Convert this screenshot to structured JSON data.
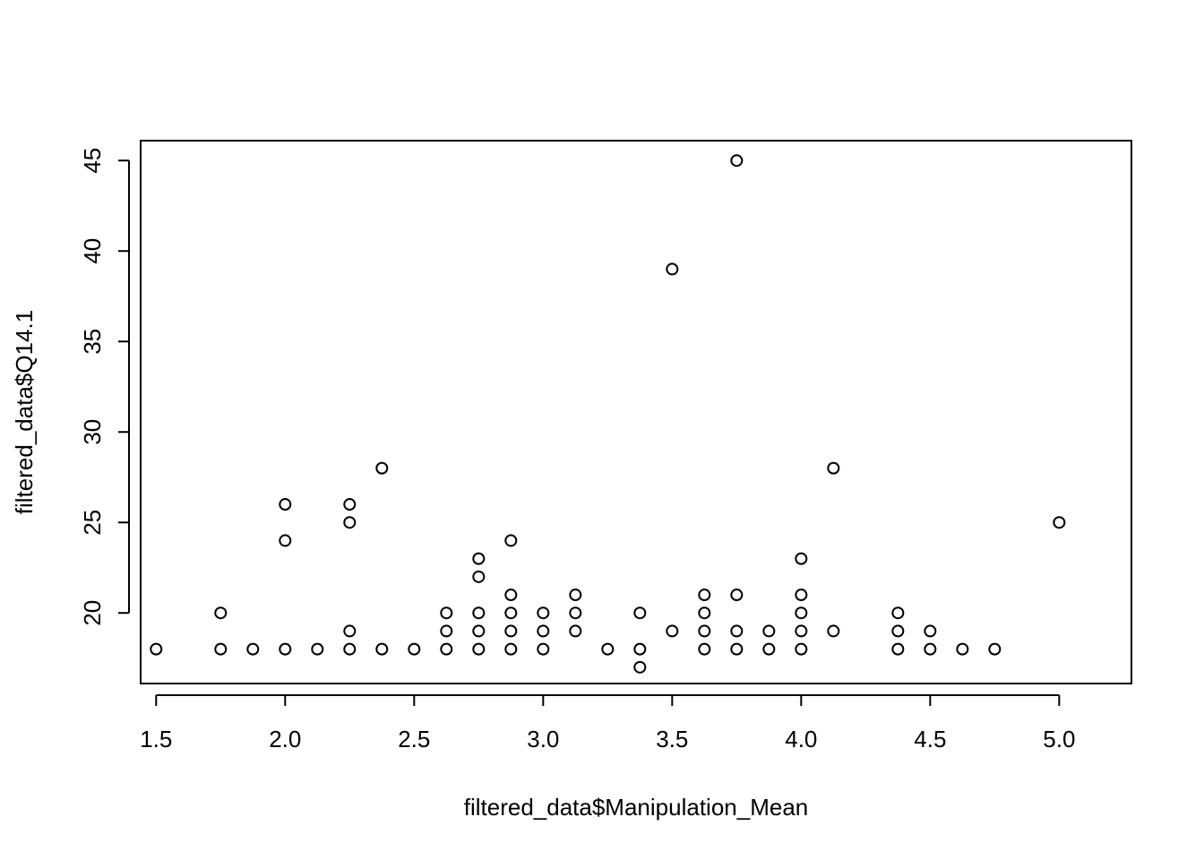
{
  "chart_data": {
    "type": "scatter",
    "title": "",
    "xlabel": "filtered_data$Manipulation_Mean",
    "ylabel": "filtered_data$Q14.1",
    "xlim": [
      1.44,
      5.28
    ],
    "ylim": [
      16.1,
      46.1
    ],
    "x_ticks": [
      "1.5",
      "2.0",
      "2.5",
      "3.0",
      "3.5",
      "4.0",
      "4.5",
      "5.0"
    ],
    "y_ticks": [
      "20",
      "25",
      "30",
      "35",
      "40",
      "45"
    ],
    "grid": false,
    "marker": "open-circle",
    "points": [
      {
        "x": 1.5,
        "y": 18
      },
      {
        "x": 1.75,
        "y": 18
      },
      {
        "x": 1.75,
        "y": 20
      },
      {
        "x": 1.875,
        "y": 18
      },
      {
        "x": 2.0,
        "y": 18
      },
      {
        "x": 2.0,
        "y": 24
      },
      {
        "x": 2.0,
        "y": 26
      },
      {
        "x": 2.125,
        "y": 18
      },
      {
        "x": 2.25,
        "y": 18
      },
      {
        "x": 2.25,
        "y": 19
      },
      {
        "x": 2.25,
        "y": 25
      },
      {
        "x": 2.25,
        "y": 26
      },
      {
        "x": 2.375,
        "y": 18
      },
      {
        "x": 2.375,
        "y": 28
      },
      {
        "x": 2.5,
        "y": 18
      },
      {
        "x": 2.625,
        "y": 18
      },
      {
        "x": 2.625,
        "y": 19
      },
      {
        "x": 2.625,
        "y": 20
      },
      {
        "x": 2.75,
        "y": 18
      },
      {
        "x": 2.75,
        "y": 19
      },
      {
        "x": 2.75,
        "y": 20
      },
      {
        "x": 2.75,
        "y": 22
      },
      {
        "x": 2.75,
        "y": 23
      },
      {
        "x": 2.875,
        "y": 18
      },
      {
        "x": 2.875,
        "y": 19
      },
      {
        "x": 2.875,
        "y": 20
      },
      {
        "x": 2.875,
        "y": 21
      },
      {
        "x": 2.875,
        "y": 24
      },
      {
        "x": 3.0,
        "y": 18
      },
      {
        "x": 3.0,
        "y": 19
      },
      {
        "x": 3.0,
        "y": 20
      },
      {
        "x": 3.125,
        "y": 19
      },
      {
        "x": 3.125,
        "y": 20
      },
      {
        "x": 3.125,
        "y": 21
      },
      {
        "x": 3.25,
        "y": 18
      },
      {
        "x": 3.375,
        "y": 17
      },
      {
        "x": 3.375,
        "y": 18
      },
      {
        "x": 3.375,
        "y": 20
      },
      {
        "x": 3.5,
        "y": 19
      },
      {
        "x": 3.5,
        "y": 39
      },
      {
        "x": 3.625,
        "y": 18
      },
      {
        "x": 3.625,
        "y": 19
      },
      {
        "x": 3.625,
        "y": 20
      },
      {
        "x": 3.625,
        "y": 21
      },
      {
        "x": 3.75,
        "y": 18
      },
      {
        "x": 3.75,
        "y": 19
      },
      {
        "x": 3.75,
        "y": 21
      },
      {
        "x": 3.75,
        "y": 45
      },
      {
        "x": 3.875,
        "y": 18
      },
      {
        "x": 3.875,
        "y": 19
      },
      {
        "x": 4.0,
        "y": 18
      },
      {
        "x": 4.0,
        "y": 19
      },
      {
        "x": 4.0,
        "y": 20
      },
      {
        "x": 4.0,
        "y": 21
      },
      {
        "x": 4.0,
        "y": 23
      },
      {
        "x": 4.125,
        "y": 19
      },
      {
        "x": 4.125,
        "y": 28
      },
      {
        "x": 4.375,
        "y": 18
      },
      {
        "x": 4.375,
        "y": 19
      },
      {
        "x": 4.375,
        "y": 20
      },
      {
        "x": 4.5,
        "y": 18
      },
      {
        "x": 4.5,
        "y": 19
      },
      {
        "x": 4.625,
        "y": 18
      },
      {
        "x": 4.75,
        "y": 18
      },
      {
        "x": 5.0,
        "y": 25
      }
    ]
  }
}
